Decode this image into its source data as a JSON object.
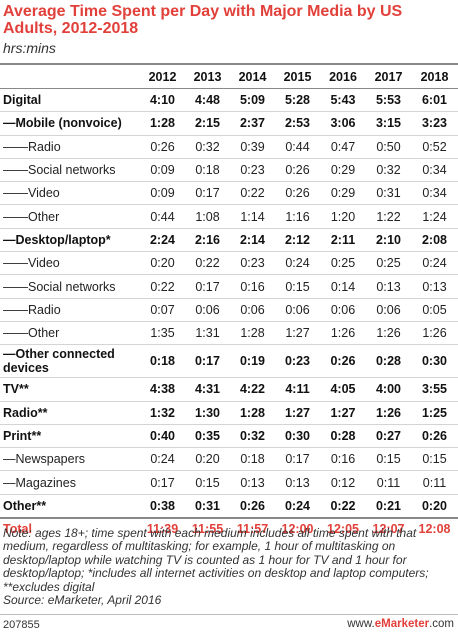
{
  "header": {
    "title": "Average Time Spent per Day with Major Media by US Adults, 2012-2018",
    "subtitle": "hrs:mins"
  },
  "chart_data": {
    "type": "table",
    "columns": [
      "",
      "2012",
      "2013",
      "2014",
      "2015",
      "2016",
      "2017",
      "2018"
    ],
    "rows": [
      {
        "label": "Digital",
        "style": "bold",
        "values": [
          "4:10",
          "4:48",
          "5:09",
          "5:28",
          "5:43",
          "5:53",
          "6:01"
        ]
      },
      {
        "label": "—Mobile (nonvoice)",
        "style": "bold",
        "values": [
          "1:28",
          "2:15",
          "2:37",
          "2:53",
          "3:06",
          "3:15",
          "3:23"
        ]
      },
      {
        "label": "——Radio",
        "style": "normal",
        "values": [
          "0:26",
          "0:32",
          "0:39",
          "0:44",
          "0:47",
          "0:50",
          "0:52"
        ]
      },
      {
        "label": "——Social networks",
        "style": "normal",
        "values": [
          "0:09",
          "0:18",
          "0:23",
          "0:26",
          "0:29",
          "0:32",
          "0:34"
        ]
      },
      {
        "label": "——Video",
        "style": "normal",
        "values": [
          "0:09",
          "0:17",
          "0:22",
          "0:26",
          "0:29",
          "0:31",
          "0:34"
        ]
      },
      {
        "label": "——Other",
        "style": "normal",
        "values": [
          "0:44",
          "1:08",
          "1:14",
          "1:16",
          "1:20",
          "1:22",
          "1:24"
        ]
      },
      {
        "label": "—Desktop/laptop*",
        "style": "bold",
        "values": [
          "2:24",
          "2:16",
          "2:14",
          "2:12",
          "2:11",
          "2:10",
          "2:08"
        ]
      },
      {
        "label": "——Video",
        "style": "normal",
        "values": [
          "0:20",
          "0:22",
          "0:23",
          "0:24",
          "0:25",
          "0:25",
          "0:24"
        ]
      },
      {
        "label": "——Social networks",
        "style": "normal",
        "values": [
          "0:22",
          "0:17",
          "0:16",
          "0:15",
          "0:14",
          "0:13",
          "0:13"
        ]
      },
      {
        "label": "——Radio",
        "style": "normal",
        "values": [
          "0:07",
          "0:06",
          "0:06",
          "0:06",
          "0:06",
          "0:06",
          "0:05"
        ]
      },
      {
        "label": "——Other",
        "style": "normal",
        "values": [
          "1:35",
          "1:31",
          "1:28",
          "1:27",
          "1:26",
          "1:26",
          "1:26"
        ]
      },
      {
        "label": "—Other connected devices",
        "style": "bold",
        "values": [
          "0:18",
          "0:17",
          "0:19",
          "0:23",
          "0:26",
          "0:28",
          "0:30"
        ]
      },
      {
        "label": "TV**",
        "style": "bold",
        "values": [
          "4:38",
          "4:31",
          "4:22",
          "4:11",
          "4:05",
          "4:00",
          "3:55"
        ]
      },
      {
        "label": "Radio**",
        "style": "bold",
        "values": [
          "1:32",
          "1:30",
          "1:28",
          "1:27",
          "1:27",
          "1:26",
          "1:25"
        ]
      },
      {
        "label": "Print**",
        "style": "bold",
        "values": [
          "0:40",
          "0:35",
          "0:32",
          "0:30",
          "0:28",
          "0:27",
          "0:26"
        ]
      },
      {
        "label": "—Newspapers",
        "style": "normal",
        "values": [
          "0:24",
          "0:20",
          "0:18",
          "0:17",
          "0:16",
          "0:15",
          "0:15"
        ]
      },
      {
        "label": "—Magazines",
        "style": "normal",
        "values": [
          "0:17",
          "0:15",
          "0:13",
          "0:13",
          "0:12",
          "0:11",
          "0:11"
        ]
      },
      {
        "label": "Other**",
        "style": "bold",
        "values": [
          "0:38",
          "0:31",
          "0:26",
          "0:24",
          "0:22",
          "0:21",
          "0:20"
        ]
      },
      {
        "label": "Total",
        "style": "total",
        "values": [
          "11:39",
          "11:55",
          "11:57",
          "12:00",
          "12:05",
          "12:07",
          "12:08"
        ]
      }
    ]
  },
  "note": "Note: ages 18+; time spent with each medium includes all time spent with that medium, regardless of multitasking; for example, 1 hour of multitasking on desktop/laptop while watching TV is counted as 1 hour for TV and 1 hour for desktop/laptop; *includes all internet activities on desktop and laptop computers; **excludes digital",
  "source": "Source: eMarketer, April 2016",
  "footer": {
    "id": "207855",
    "site_prefix": "www.",
    "site_brand": "eMarketer",
    "site_suffix": ".com"
  },
  "colors": {
    "accent": "#e2403a",
    "rule": "#888888",
    "gridline": "#d4d4d4"
  }
}
